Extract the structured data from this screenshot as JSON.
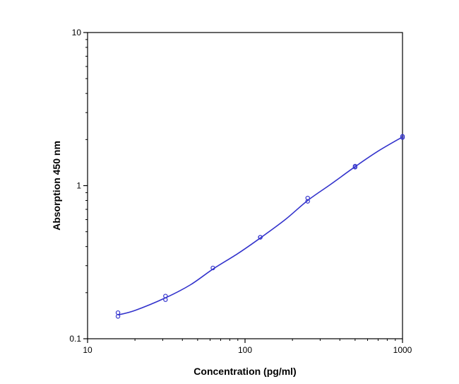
{
  "chart_data": {
    "type": "scatter",
    "title": "",
    "xlabel": "Concentration (pg/ml)",
    "ylabel": "Absorption 450 nm",
    "x_scale": "log",
    "y_scale": "log",
    "xlim": [
      10,
      1000
    ],
    "ylim": [
      0.1,
      10
    ],
    "x_ticks": [
      10,
      100,
      1000
    ],
    "x_tick_labels": [
      "10",
      "100",
      "1000"
    ],
    "y_ticks": [
      0.1,
      1,
      10
    ],
    "y_tick_labels": [
      "0.1",
      "1",
      "10"
    ],
    "grid": false,
    "legend": "none",
    "series": [
      {
        "marker": "open-circle",
        "points": [
          {
            "x": 15.6,
            "y": 0.148
          },
          {
            "x": 15.6,
            "y": 0.14
          },
          {
            "x": 31.25,
            "y": 0.19
          },
          {
            "x": 31.25,
            "y": 0.18
          },
          {
            "x": 62.5,
            "y": 0.29
          },
          {
            "x": 125,
            "y": 0.46
          },
          {
            "x": 125,
            "y": 0.46
          },
          {
            "x": 250,
            "y": 0.83
          },
          {
            "x": 250,
            "y": 0.79
          },
          {
            "x": 500,
            "y": 1.34
          },
          {
            "x": 500,
            "y": 1.32
          },
          {
            "x": 1000,
            "y": 2.1
          },
          {
            "x": 1000,
            "y": 2.06
          }
        ]
      }
    ],
    "fit_curve": {
      "type": "4-parameter logistic",
      "points": [
        {
          "x": 15.6,
          "y": 0.143
        },
        {
          "x": 20,
          "y": 0.153
        },
        {
          "x": 31.25,
          "y": 0.185
        },
        {
          "x": 45,
          "y": 0.225
        },
        {
          "x": 62.5,
          "y": 0.285
        },
        {
          "x": 90,
          "y": 0.36
        },
        {
          "x": 125,
          "y": 0.455
        },
        {
          "x": 180,
          "y": 0.6
        },
        {
          "x": 250,
          "y": 0.8
        },
        {
          "x": 350,
          "y": 1.02
        },
        {
          "x": 500,
          "y": 1.33
        },
        {
          "x": 700,
          "y": 1.68
        },
        {
          "x": 1000,
          "y": 2.08
        }
      ]
    },
    "colors": {
      "data": "#3333cc",
      "axes": "#000000",
      "background": "#ffffff"
    }
  }
}
